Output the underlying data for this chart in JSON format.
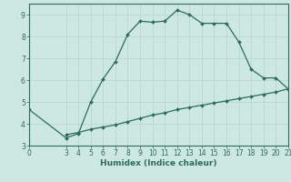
{
  "title": "",
  "xlabel": "Humidex (Indice chaleur)",
  "ylabel": "",
  "xlim": [
    0,
    21
  ],
  "ylim": [
    3,
    9.5
  ],
  "yticks": [
    3,
    4,
    5,
    6,
    7,
    8,
    9
  ],
  "xticks": [
    0,
    3,
    4,
    5,
    6,
    7,
    8,
    9,
    10,
    11,
    12,
    13,
    14,
    15,
    16,
    17,
    18,
    19,
    20,
    21
  ],
  "line1_x": [
    0,
    3,
    4,
    5,
    6,
    7,
    8,
    9,
    10,
    11,
    12,
    13,
    14,
    15,
    16,
    17,
    18,
    19,
    20,
    21
  ],
  "line1_y": [
    4.65,
    3.35,
    3.55,
    5.0,
    6.05,
    6.85,
    8.1,
    8.7,
    8.65,
    8.7,
    9.2,
    9.0,
    8.6,
    8.6,
    8.6,
    7.75,
    6.5,
    6.1,
    6.1,
    5.6
  ],
  "line2_x": [
    3,
    4,
    5,
    6,
    7,
    8,
    9,
    10,
    11,
    12,
    13,
    14,
    15,
    16,
    17,
    18,
    19,
    20,
    21
  ],
  "line2_y": [
    3.5,
    3.6,
    3.75,
    3.85,
    3.95,
    4.1,
    4.25,
    4.4,
    4.5,
    4.65,
    4.75,
    4.85,
    4.95,
    5.05,
    5.15,
    5.25,
    5.35,
    5.45,
    5.6
  ],
  "line_color": "#2e6b5e",
  "bg_color": "#cce8e0",
  "grid_color": "#b8d8d0",
  "axis_color": "#2e6b5e",
  "label_fontsize": 6.5,
  "tick_fontsize": 5.5
}
